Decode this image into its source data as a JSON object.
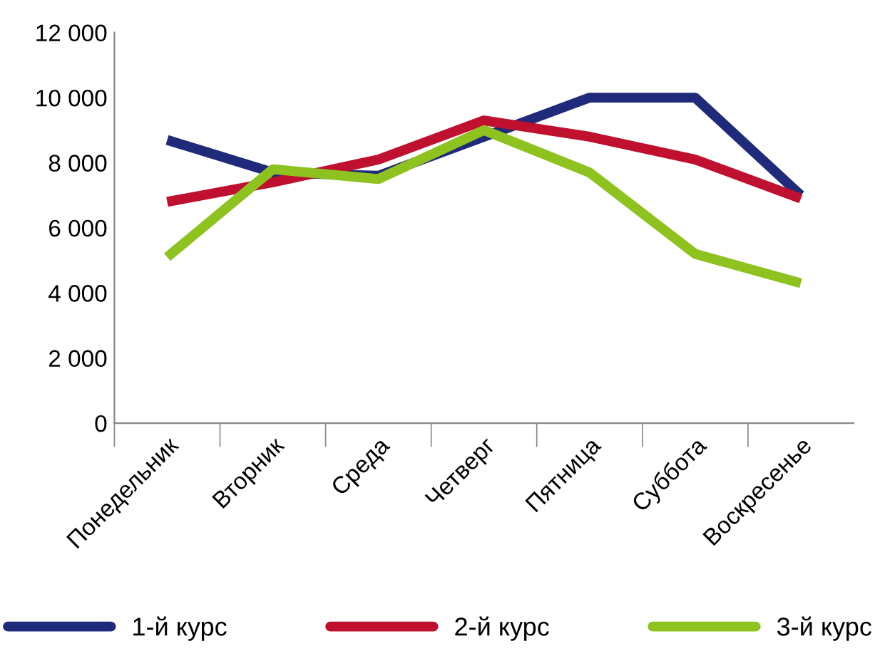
{
  "chart_data": {
    "type": "line",
    "categories": [
      "Понедельник",
      "Вторник",
      "Среда",
      "Четверг",
      "Пятница",
      "Суббота",
      "Воскресенье"
    ],
    "series": [
      {
        "name": "1-й курс",
        "color": "#1f2a7a",
        "values": [
          8700,
          7700,
          7600,
          8800,
          10000,
          10000,
          7000
        ]
      },
      {
        "name": "2-й курс",
        "color": "#c0102f",
        "values": [
          6800,
          7400,
          8100,
          9300,
          8800,
          8100,
          6900
        ]
      },
      {
        "name": "3-й курс",
        "color": "#8dc21f",
        "values": [
          5100,
          7800,
          7500,
          9000,
          7700,
          5200,
          4300
        ]
      }
    ],
    "ylim": [
      0,
      12000
    ],
    "yticks": [
      {
        "value": 0,
        "label": "0"
      },
      {
        "value": 2000,
        "label": "2 000"
      },
      {
        "value": 4000,
        "label": "4 000"
      },
      {
        "value": 6000,
        "label": "6 000"
      },
      {
        "value": 8000,
        "label": "8 000"
      },
      {
        "value": 10000,
        "label": "10 000"
      },
      {
        "value": 12000,
        "label": "12 000"
      }
    ],
    "grid": false,
    "legend": "bottom",
    "marker": "none",
    "line_style": "solid"
  }
}
